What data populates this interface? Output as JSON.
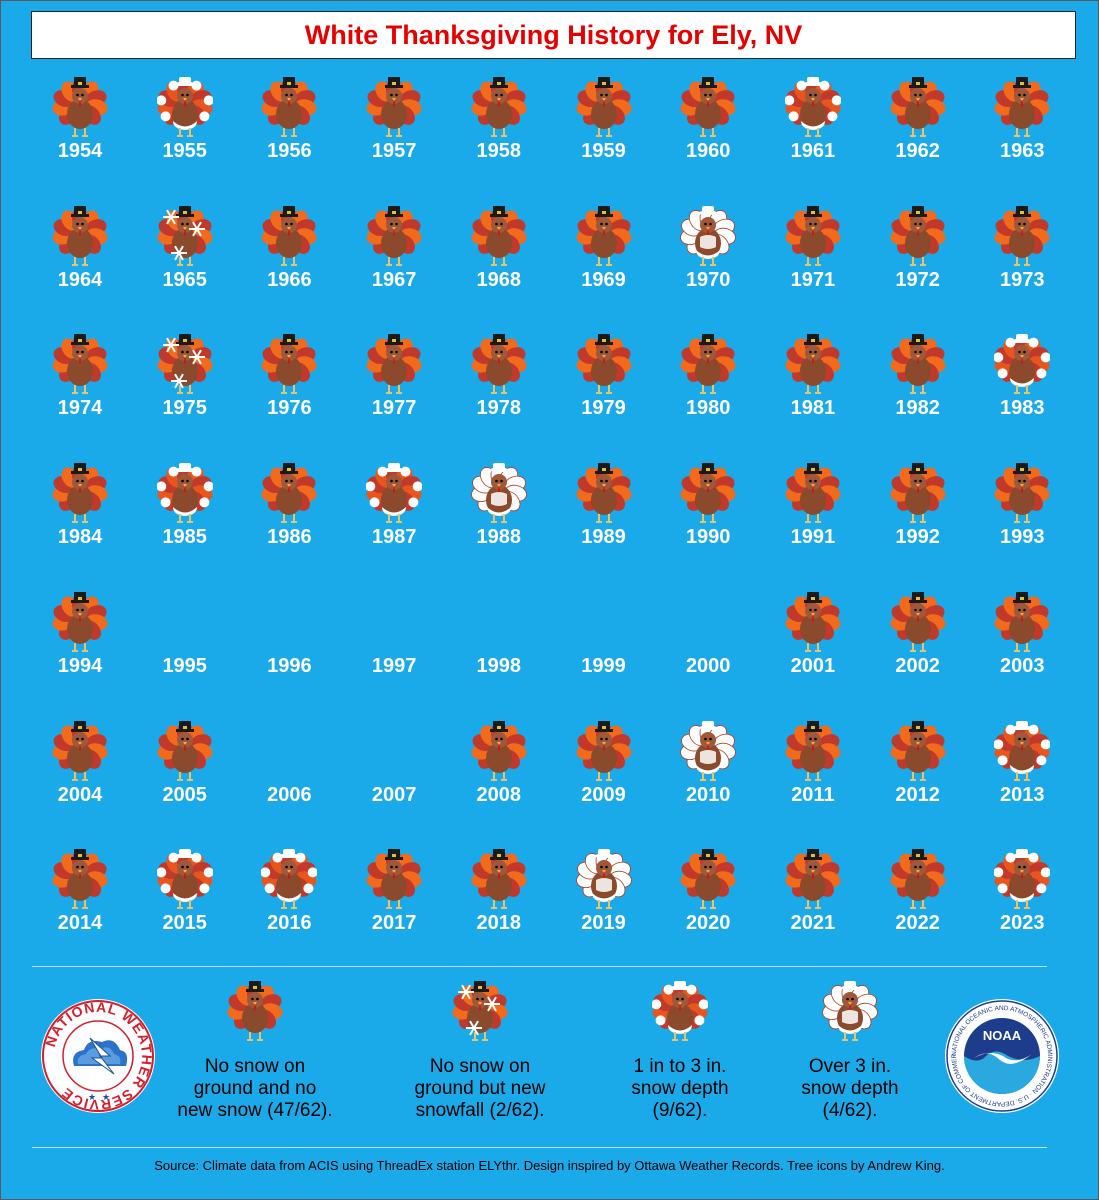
{
  "title": "White Thanksgiving History for Ely, NV",
  "colors": {
    "background": "#1aa9e9",
    "title": "#e60000",
    "year_text": "#ffffff"
  },
  "chart_data": {
    "type": "table",
    "title": "White Thanksgiving History for Ely, NV",
    "categories": {
      "none": "No snow on ground and no new snow (47/62).",
      "new_snow": "No snow on ground but new snowfall (2/62).",
      "depth_1_3": "1 in to 3 in. snow depth (9/62).",
      "depth_over_3": "Over 3 in. snow depth (4/62)."
    },
    "years": [
      {
        "year": "1954",
        "category": "none"
      },
      {
        "year": "1955",
        "category": "depth_1_3"
      },
      {
        "year": "1956",
        "category": "none"
      },
      {
        "year": "1957",
        "category": "none"
      },
      {
        "year": "1958",
        "category": "none"
      },
      {
        "year": "1959",
        "category": "none"
      },
      {
        "year": "1960",
        "category": "none"
      },
      {
        "year": "1961",
        "category": "depth_1_3"
      },
      {
        "year": "1962",
        "category": "none"
      },
      {
        "year": "1963",
        "category": "none"
      },
      {
        "year": "1964",
        "category": "none"
      },
      {
        "year": "1965",
        "category": "new_snow"
      },
      {
        "year": "1966",
        "category": "none"
      },
      {
        "year": "1967",
        "category": "none"
      },
      {
        "year": "1968",
        "category": "none"
      },
      {
        "year": "1969",
        "category": "none"
      },
      {
        "year": "1970",
        "category": "depth_over_3"
      },
      {
        "year": "1971",
        "category": "none"
      },
      {
        "year": "1972",
        "category": "none"
      },
      {
        "year": "1973",
        "category": "none"
      },
      {
        "year": "1974",
        "category": "none"
      },
      {
        "year": "1975",
        "category": "new_snow"
      },
      {
        "year": "1976",
        "category": "none"
      },
      {
        "year": "1977",
        "category": "none"
      },
      {
        "year": "1978",
        "category": "none"
      },
      {
        "year": "1979",
        "category": "none"
      },
      {
        "year": "1980",
        "category": "none"
      },
      {
        "year": "1981",
        "category": "none"
      },
      {
        "year": "1982",
        "category": "none"
      },
      {
        "year": "1983",
        "category": "depth_1_3"
      },
      {
        "year": "1984",
        "category": "none"
      },
      {
        "year": "1985",
        "category": "depth_1_3"
      },
      {
        "year": "1986",
        "category": "none"
      },
      {
        "year": "1987",
        "category": "depth_1_3"
      },
      {
        "year": "1988",
        "category": "depth_over_3"
      },
      {
        "year": "1989",
        "category": "none"
      },
      {
        "year": "1990",
        "category": "none"
      },
      {
        "year": "1991",
        "category": "none"
      },
      {
        "year": "1992",
        "category": "none"
      },
      {
        "year": "1993",
        "category": "none"
      },
      {
        "year": "1994",
        "category": "none"
      },
      {
        "year": "1995",
        "category": "missing"
      },
      {
        "year": "1996",
        "category": "missing"
      },
      {
        "year": "1997",
        "category": "missing"
      },
      {
        "year": "1998",
        "category": "missing"
      },
      {
        "year": "1999",
        "category": "missing"
      },
      {
        "year": "2000",
        "category": "missing"
      },
      {
        "year": "2001",
        "category": "none"
      },
      {
        "year": "2002",
        "category": "none"
      },
      {
        "year": "2003",
        "category": "none"
      },
      {
        "year": "2004",
        "category": "none"
      },
      {
        "year": "2005",
        "category": "none"
      },
      {
        "year": "2006",
        "category": "missing"
      },
      {
        "year": "2007",
        "category": "missing"
      },
      {
        "year": "2008",
        "category": "none"
      },
      {
        "year": "2009",
        "category": "none"
      },
      {
        "year": "2010",
        "category": "depth_over_3"
      },
      {
        "year": "2011",
        "category": "none"
      },
      {
        "year": "2012",
        "category": "none"
      },
      {
        "year": "2013",
        "category": "depth_1_3"
      },
      {
        "year": "2014",
        "category": "none"
      },
      {
        "year": "2015",
        "category": "depth_1_3"
      },
      {
        "year": "2016",
        "category": "depth_1_3"
      },
      {
        "year": "2017",
        "category": "none"
      },
      {
        "year": "2018",
        "category": "none"
      },
      {
        "year": "2019",
        "category": "depth_over_3"
      },
      {
        "year": "2020",
        "category": "none"
      },
      {
        "year": "2021",
        "category": "none"
      },
      {
        "year": "2022",
        "category": "none"
      },
      {
        "year": "2023",
        "category": "depth_1_3"
      }
    ]
  },
  "legend": [
    {
      "category": "none",
      "text": "No snow on ground and no new snow (47/62).",
      "icon": "turkey-icon"
    },
    {
      "category": "new_snow",
      "text": "No snow on ground but new snowfall (2/62).",
      "icon": "turkey-snowflakes-icon"
    },
    {
      "category": "depth_1_3",
      "text": "1 in to 3 in. snow depth (9/62).",
      "icon": "turkey-light-snow-icon"
    },
    {
      "category": "depth_over_3",
      "text": "Over 3 in. snow depth (4/62).",
      "icon": "turkey-heavy-snow-icon"
    }
  ],
  "logos": {
    "nws": {
      "icon": "nws-logo",
      "text": "NATIONAL WEATHER SERVICE"
    },
    "noaa": {
      "icon": "noaa-logo",
      "text": "NOAA",
      "ring_text": "NATIONAL OCEANIC AND ATMOSPHERIC ADMINISTRATION · U.S. DEPARTMENT OF COMMERCE"
    }
  },
  "source": "Source: Climate data from ACIS using ThreadEx station ELYthr. Design inspired by Ottawa Weather Records. Tree icons by Andrew King."
}
